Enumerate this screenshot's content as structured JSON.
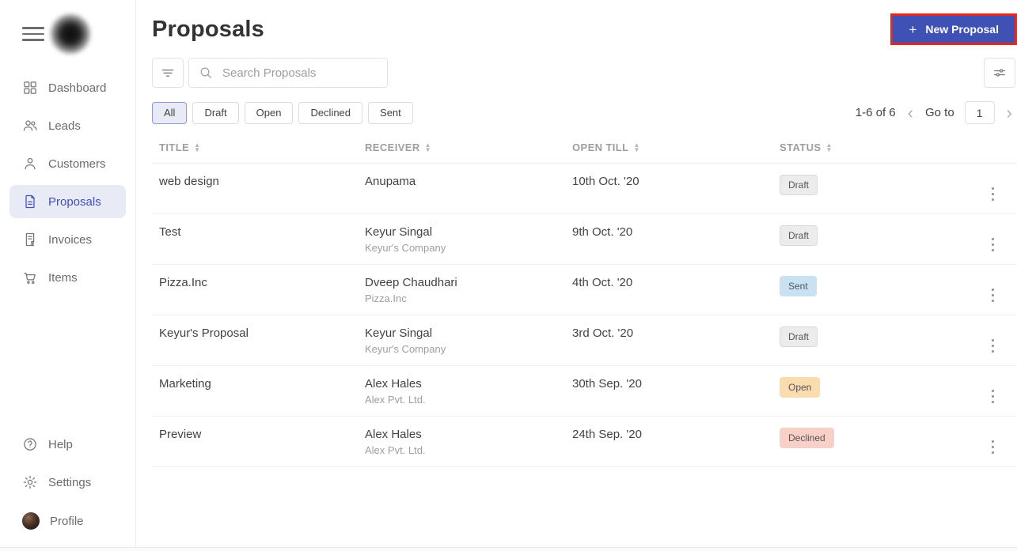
{
  "sidebar": {
    "items": [
      {
        "label": "Dashboard",
        "icon": "grid-icon",
        "active": false
      },
      {
        "label": "Leads",
        "icon": "users-icon",
        "active": false
      },
      {
        "label": "Customers",
        "icon": "user-icon",
        "active": false
      },
      {
        "label": "Proposals",
        "icon": "document-icon",
        "active": true
      },
      {
        "label": "Invoices",
        "icon": "invoice-dollar-icon",
        "active": false
      },
      {
        "label": "Items",
        "icon": "cart-icon",
        "active": false
      }
    ],
    "footer": [
      {
        "label": "Help",
        "icon": "help-circle-icon"
      },
      {
        "label": "Settings",
        "icon": "gear-icon"
      },
      {
        "label": "Profile",
        "icon": "avatar"
      }
    ]
  },
  "header": {
    "title": "Proposals",
    "new_button": {
      "plus": "+",
      "label": "New Proposal"
    }
  },
  "toolbar": {
    "search_placeholder": "Search Proposals"
  },
  "filters": {
    "tabs": [
      {
        "label": "All",
        "active": true
      },
      {
        "label": "Draft",
        "active": false
      },
      {
        "label": "Open",
        "active": false
      },
      {
        "label": "Declined",
        "active": false
      },
      {
        "label": "Sent",
        "active": false
      }
    ]
  },
  "pagination": {
    "range": "1-6 of 6",
    "prev": "‹",
    "next": "›",
    "goto_label": "Go to",
    "page": "1"
  },
  "table": {
    "columns": [
      "TITLE",
      "RECEIVER",
      "OPEN TILL",
      "STATUS"
    ],
    "rows": [
      {
        "title": "web design",
        "receiver": "Anupama",
        "company": "",
        "open_till": "10th Oct. '20",
        "status": "Draft"
      },
      {
        "title": "Test",
        "receiver": "Keyur Singal",
        "company": "Keyur's Company",
        "open_till": "9th Oct. '20",
        "status": "Draft"
      },
      {
        "title": "Pizza.Inc",
        "receiver": "Dveep Chaudhari",
        "company": "Pizza.Inc",
        "open_till": "4th Oct. '20",
        "status": "Sent"
      },
      {
        "title": "Keyur's Proposal",
        "receiver": "Keyur Singal",
        "company": "Keyur's Company",
        "open_till": "3rd Oct. '20",
        "status": "Draft"
      },
      {
        "title": "Marketing",
        "receiver": "Alex Hales",
        "company": "Alex Pvt. Ltd.",
        "open_till": "30th Sep. '20",
        "status": "Open"
      },
      {
        "title": "Preview",
        "receiver": "Alex Hales",
        "company": "Alex Pvt. Ltd.",
        "open_till": "24th Sep. '20",
        "status": "Declined"
      }
    ]
  },
  "colors": {
    "accent": "#3f51b5",
    "active_bg": "#e8eaf6",
    "highlight_border": "#e8261d",
    "status_draft_bg": "#ececec",
    "status_sent_bg": "#c9e2f3",
    "status_open_bg": "#fbdcae",
    "status_declined_bg": "#f8d0c8"
  }
}
